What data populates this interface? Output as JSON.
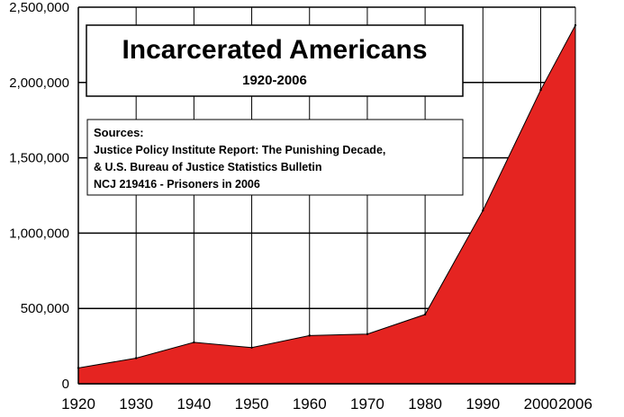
{
  "colors": {
    "area": "#e52421",
    "grid": "#000000",
    "background": "#ffffff"
  },
  "title_box": {
    "title": "Incarcerated Americans",
    "subtitle": "1920-2006"
  },
  "sources_box": {
    "heading": "Sources:",
    "lines": [
      "Justice Policy Institute Report: The Punishing Decade,",
      "& U.S. Bureau of Justice Statistics Bulletin",
      "NCJ 219416 - Prisoners in 2006"
    ]
  },
  "chart_data": {
    "type": "area",
    "title": "Incarcerated Americans",
    "subtitle": "1920-2006",
    "xlabel": "",
    "ylabel": "",
    "x": [
      1920,
      1930,
      1940,
      1950,
      1960,
      1970,
      1980,
      1990,
      2000,
      2006
    ],
    "series": [
      {
        "name": "Incarcerated Americans",
        "values": [
          105000,
          170000,
          275000,
          240000,
          320000,
          330000,
          460000,
          1150000,
          1950000,
          2380000
        ]
      }
    ],
    "x_ticks": [
      1920,
      1930,
      1940,
      1950,
      1960,
      1970,
      1980,
      1990,
      2000,
      2006
    ],
    "x_tick_labels": [
      "1920",
      "1930",
      "1940",
      "1950",
      "1960",
      "1970",
      "1980",
      "1990",
      "2000",
      "2006"
    ],
    "y_ticks": [
      0,
      500000,
      1000000,
      1500000,
      2000000,
      2500000
    ],
    "y_tick_labels": [
      "0",
      "500,000",
      "1,000,000",
      "1,500,000",
      "2,000,000",
      "2,500,000"
    ],
    "xlim": [
      1920,
      2006
    ],
    "ylim": [
      0,
      2500000
    ],
    "grid": true
  }
}
